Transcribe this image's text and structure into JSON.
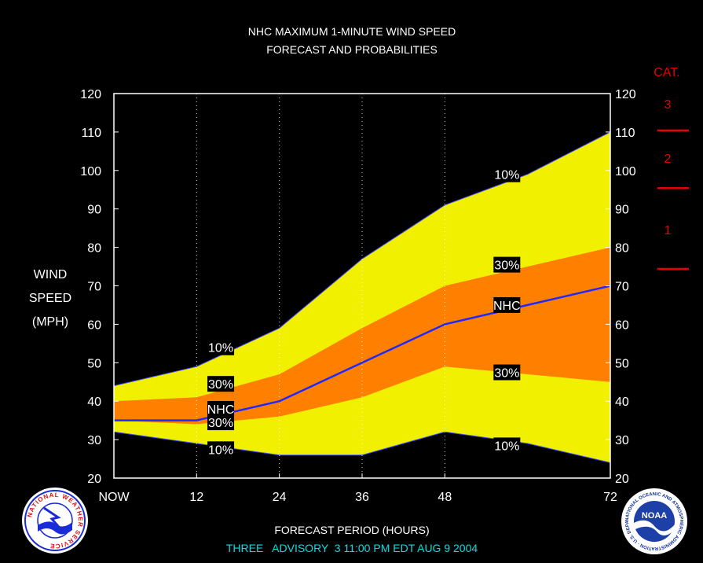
{
  "chart_data": {
    "type": "area",
    "title": "NHC MAXIMUM 1-MINUTE WIND SPEED",
    "subtitle": "FORECAST AND PROBABILITIES",
    "ylabel": [
      "WIND",
      "SPEED",
      "(MPH)"
    ],
    "xlabel": "FORECAST PERIOD (HOURS)",
    "footer": "THREE   ADVISORY  3 11:00 PM EDT AUG 9 2004",
    "ylim": [
      20,
      120
    ],
    "yticks": [
      20,
      30,
      40,
      50,
      60,
      70,
      80,
      90,
      100,
      110,
      120
    ],
    "xlim": [
      0,
      72
    ],
    "xticks": [
      {
        "value": 0,
        "label": "NOW"
      },
      {
        "value": 12,
        "label": "12"
      },
      {
        "value": 24,
        "label": "24"
      },
      {
        "value": 36,
        "label": "36"
      },
      {
        "value": 48,
        "label": "48"
      },
      {
        "value": 72,
        "label": "72"
      }
    ],
    "x": [
      0,
      12,
      24,
      36,
      48,
      60,
      72
    ],
    "series": [
      {
        "values_upper": [
          44,
          49,
          59,
          77,
          91,
          99,
          110
        ],
        "values_lower": [
          32,
          29,
          26,
          26,
          32,
          29,
          24
        ],
        "color": "#f0f000"
      },
      {
        "values_upper": [
          40,
          41,
          47,
          59,
          70,
          75,
          80
        ],
        "values_lower": [
          35,
          34,
          36,
          41,
          49,
          47,
          45
        ],
        "color": "#ff8000"
      },
      {
        "values": [
          35,
          35,
          40,
          50,
          60,
          65,
          70
        ],
        "color": "#1e28ff"
      }
    ],
    "labels": [
      {
        "text": "10%",
        "x": 15.5,
        "y": 54
      },
      {
        "text": "30%",
        "x": 15.5,
        "y": 44.5
      },
      {
        "text": "NHC",
        "x": 15.5,
        "y": 38
      },
      {
        "text": "30%",
        "x": 15.5,
        "y": 34.5
      },
      {
        "text": "10%",
        "x": 15.5,
        "y": 27.5
      },
      {
        "text": "10%",
        "x": 57,
        "y": 99
      },
      {
        "text": "30%",
        "x": 57,
        "y": 75.5
      },
      {
        "text": "NHC",
        "x": 57,
        "y": 65
      },
      {
        "text": "30%",
        "x": 57,
        "y": 47.5
      },
      {
        "text": "10%",
        "x": 57,
        "y": 28.5
      }
    ],
    "categories": {
      "heading": "CAT.",
      "color": "#e80000",
      "items": [
        {
          "label": "3",
          "wind_at": 110
        },
        {
          "label": "2",
          "wind_at": 95
        },
        {
          "label": "1",
          "wind_at": 74
        }
      ]
    },
    "grid": "vertical-dotted"
  },
  "logos": {
    "left": "NATIONAL WEATHER SERVICE",
    "right": "NOAA",
    "right_ring": "NATIONAL OCEANIC AND ATMOSPHERIC ADMINISTRATION · U.S. DEPARTMENT OF COMMERCE"
  },
  "colors": {
    "background": "#000000",
    "text": "#ffffff",
    "footer": "#00e0e0"
  }
}
